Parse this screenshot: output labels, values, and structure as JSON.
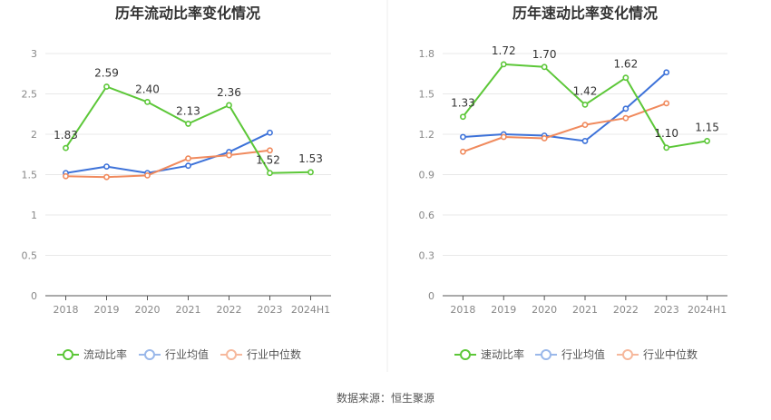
{
  "source": "数据来源：恒生聚源",
  "colors": {
    "main": "#5cc738",
    "avg": "#3d72d9",
    "median": "#f08a5d",
    "avg_legend": "#9ab8ea",
    "median_legend": "#f6b89c",
    "grid": "#e8e8e8",
    "axis": "#555555",
    "divider": "#eeeeee"
  },
  "chart_data": [
    {
      "type": "line",
      "title": "历年流动比率变化情况",
      "categories": [
        "2018",
        "2019",
        "2020",
        "2021",
        "2022",
        "2023",
        "2024H1"
      ],
      "ylim": [
        0,
        3
      ],
      "yticks": [
        "0",
        "0.5",
        "1",
        "1.5",
        "2",
        "2.5",
        "3"
      ],
      "ytick_values": [
        0,
        0.5,
        1,
        1.5,
        2,
        2.5,
        3
      ],
      "series": [
        {
          "name": "流动比率",
          "key": "main",
          "values": [
            1.83,
            2.59,
            2.4,
            2.13,
            2.36,
            1.52,
            1.53
          ],
          "labels": [
            "1.83",
            "2.59",
            "2.40",
            "2.13",
            "2.36",
            "1.52",
            "1.53"
          ]
        },
        {
          "name": "行业均值",
          "key": "avg",
          "values": [
            1.52,
            1.6,
            1.52,
            1.61,
            1.78,
            2.02,
            null
          ]
        },
        {
          "name": "行业中位数",
          "key": "median",
          "values": [
            1.48,
            1.47,
            1.49,
            1.7,
            1.74,
            1.8,
            null
          ]
        }
      ]
    },
    {
      "type": "line",
      "title": "历年速动比率变化情况",
      "categories": [
        "2018",
        "2019",
        "2020",
        "2021",
        "2022",
        "2023",
        "2024H1"
      ],
      "ylim": [
        0,
        1.8
      ],
      "yticks": [
        "0",
        "0.3",
        "0.6",
        "0.9",
        "1.2",
        "1.5",
        "1.8"
      ],
      "ytick_values": [
        0,
        0.3,
        0.6,
        0.9,
        1.2,
        1.5,
        1.8
      ],
      "series": [
        {
          "name": "速动比率",
          "key": "main",
          "values": [
            1.33,
            1.72,
            1.7,
            1.42,
            1.62,
            1.1,
            1.15
          ],
          "labels": [
            "1.33",
            "1.72",
            "1.70",
            "1.42",
            "1.62",
            "1.10",
            "1.15"
          ]
        },
        {
          "name": "行业均值",
          "key": "avg",
          "values": [
            1.18,
            1.2,
            1.19,
            1.15,
            1.39,
            1.66,
            null
          ]
        },
        {
          "name": "行业中位数",
          "key": "median",
          "values": [
            1.07,
            1.18,
            1.17,
            1.27,
            1.32,
            1.43,
            null
          ]
        }
      ]
    }
  ]
}
